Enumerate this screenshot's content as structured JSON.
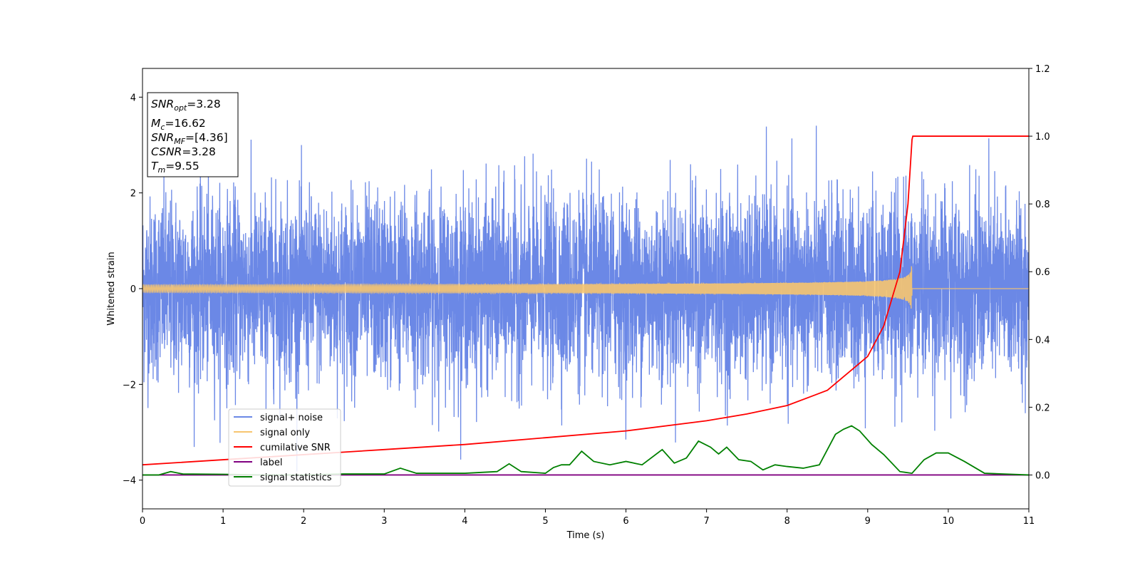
{
  "chart_data": {
    "type": "line",
    "xlabel": "Time (s)",
    "ylabel": "Whitened strain",
    "xlim": [
      0,
      11
    ],
    "ylim": [
      -4.6,
      4.6
    ],
    "y2lim": [
      -0.1,
      1.2
    ],
    "x_ticks": [
      "0",
      "1",
      "2",
      "3",
      "4",
      "5",
      "6",
      "7",
      "8",
      "9",
      "10",
      "11"
    ],
    "y_ticks": [
      "4",
      "2",
      "0",
      "−2",
      "−4"
    ],
    "y2_ticks": [
      "1.2",
      "1.0",
      "0.8",
      "0.6",
      "0.4",
      "0.2",
      "0.0"
    ],
    "grid": false,
    "legend_position": "lower-left",
    "legend": [
      "signal+ noise",
      "signal only",
      "cumilative SNR",
      "label",
      "signal statistics"
    ],
    "info_box": {
      "snr_opt": {
        "prefix": "SNR",
        "sub": "opt",
        "value": "=3.28"
      },
      "mc": {
        "prefix": "M",
        "sub": "c",
        "value": "=16.62"
      },
      "snr_mf": {
        "prefix": "SNR",
        "sub": "MF",
        "value": "=[4.36]"
      },
      "csnr": {
        "prefix": "CSNR",
        "value": "=3.28"
      },
      "tm": {
        "prefix": "T",
        "sub": "m",
        "value": "=9.55"
      }
    },
    "series": [
      {
        "name": "signal+ noise",
        "axis": "left",
        "color": "#6b88e6",
        "description": "whitened noisy strain, roughly between -3 and 4.2",
        "envelope_max": 4.18,
        "envelope_min": -4.15
      },
      {
        "name": "signal only",
        "axis": "left",
        "color": "#f7c56f",
        "description": "chirp waveform growing until merger at t≈9.55",
        "peak_amplitude": 0.6,
        "merger_time": 9.55
      },
      {
        "name": "cumilative SNR",
        "axis": "right",
        "color": "#ff0000",
        "x": [
          0,
          1,
          2,
          3,
          4,
          5,
          6,
          7,
          7.5,
          8,
          8.5,
          9,
          9.2,
          9.4,
          9.5,
          9.55,
          9.56,
          11
        ],
        "values": [
          0.03,
          0.045,
          0.06,
          0.075,
          0.09,
          0.11,
          0.13,
          0.16,
          0.18,
          0.205,
          0.25,
          0.35,
          0.44,
          0.6,
          0.8,
          0.99,
          1.0,
          1.0
        ]
      },
      {
        "name": "label",
        "axis": "right",
        "color": "#800080",
        "x": [
          0,
          11
        ],
        "values": [
          0.0,
          0.0
        ]
      },
      {
        "name": "signal statistics",
        "axis": "right",
        "color": "#008000",
        "x": [
          0,
          0.2,
          0.35,
          0.5,
          1,
          1.5,
          2,
          2.5,
          3,
          3.2,
          3.4,
          4,
          4.4,
          4.55,
          4.7,
          5,
          5.1,
          5.2,
          5.3,
          5.45,
          5.6,
          5.8,
          6,
          6.2,
          6.45,
          6.6,
          6.75,
          6.9,
          7.05,
          7.15,
          7.25,
          7.4,
          7.55,
          7.7,
          7.85,
          8,
          8.2,
          8.4,
          8.6,
          8.7,
          8.8,
          8.9,
          9.05,
          9.2,
          9.4,
          9.55,
          9.7,
          9.85,
          10,
          10.2,
          10.45,
          11
        ],
        "values": [
          0.0,
          0.0,
          0.01,
          0.003,
          0.002,
          0.0,
          0.0,
          0.003,
          0.003,
          0.02,
          0.005,
          0.005,
          0.01,
          0.033,
          0.01,
          0.005,
          0.022,
          0.03,
          0.03,
          0.07,
          0.04,
          0.03,
          0.04,
          0.03,
          0.075,
          0.035,
          0.05,
          0.1,
          0.082,
          0.062,
          0.082,
          0.045,
          0.04,
          0.015,
          0.03,
          0.025,
          0.02,
          0.03,
          0.12,
          0.135,
          0.145,
          0.13,
          0.09,
          0.06,
          0.01,
          0.005,
          0.045,
          0.065,
          0.065,
          0.04,
          0.005,
          0.0
        ]
      }
    ]
  }
}
